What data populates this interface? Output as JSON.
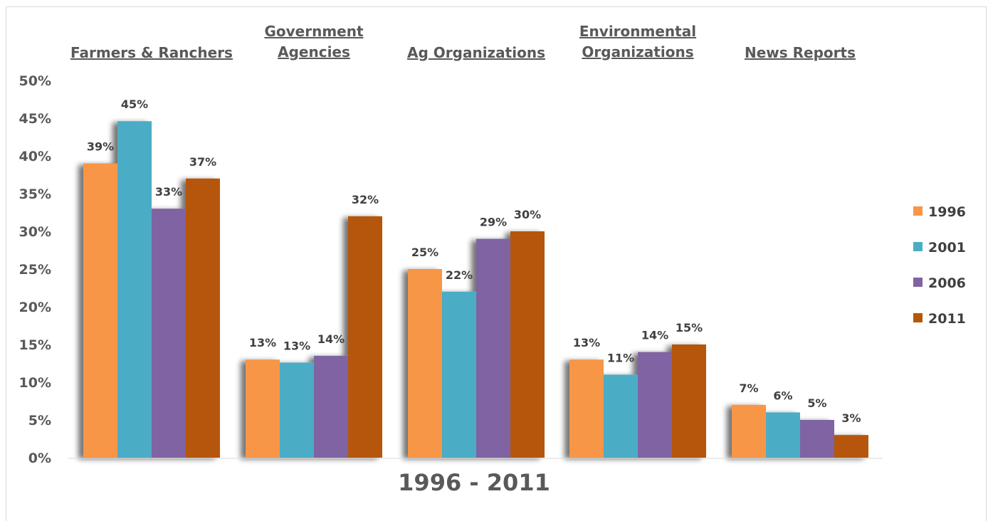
{
  "chart_data": {
    "type": "bar",
    "categories": [
      [
        "Farmers & Ranchers"
      ],
      [
        "Government",
        "Agencies"
      ],
      [
        "Ag Organizations"
      ],
      [
        "Environmental",
        "Organizations"
      ],
      [
        "News Reports"
      ]
    ],
    "series": [
      {
        "name": "1996",
        "color": "#f79646",
        "values": [
          39,
          13,
          25,
          13,
          7
        ],
        "labels": [
          "39%",
          "13%",
          "25%",
          "13%",
          "7%"
        ]
      },
      {
        "name": "2001",
        "color": "#4bacc6",
        "values": [
          44.6,
          12.6,
          22,
          11,
          6
        ],
        "labels": [
          "45%",
          "13%",
          "22%",
          "11%",
          "6%"
        ]
      },
      {
        "name": "2006",
        "color": "#8064a2",
        "values": [
          33,
          13.5,
          29,
          14,
          5
        ],
        "labels": [
          "33%",
          "14%",
          "29%",
          "14%",
          "5%"
        ]
      },
      {
        "name": "2011",
        "color": "#b65708",
        "values": [
          37,
          32,
          30,
          15,
          3
        ],
        "labels": [
          "37%",
          "32%",
          "30%",
          "15%",
          "3%"
        ]
      }
    ],
    "y_ticks": [
      "0%",
      "5%",
      "10%",
      "15%",
      "20%",
      "25%",
      "30%",
      "35%",
      "40%",
      "45%",
      "50%"
    ],
    "ylim": [
      0,
      50
    ],
    "xlabel": "1996 - 2011",
    "title": "",
    "ylabel": "",
    "grid": false,
    "legend_position": "right"
  }
}
